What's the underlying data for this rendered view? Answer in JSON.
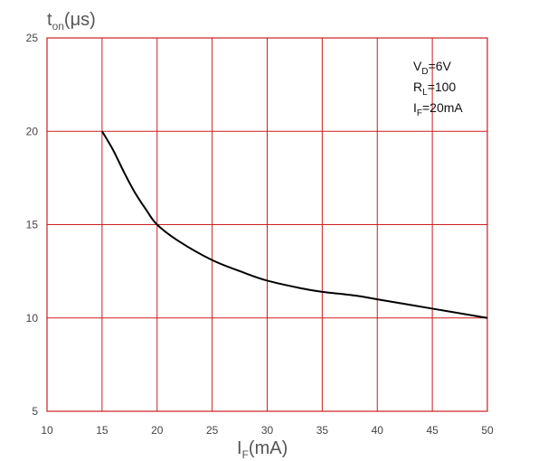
{
  "chart_data": {
    "type": "line",
    "xlabel": "I",
    "xlabel_sub": "F",
    "xlabel_unit": "(mA)",
    "ylabel": "t",
    "ylabel_sub": "on",
    "ylabel_unit": "(μs)",
    "xlim": [
      10,
      50
    ],
    "ylim": [
      5,
      25
    ],
    "x_ticks": [
      "10",
      "15",
      "20",
      "25",
      "30",
      "35",
      "40",
      "45",
      "50"
    ],
    "y_ticks": [
      "5",
      "10",
      "15",
      "20",
      "25"
    ],
    "grid": true,
    "series": [
      {
        "x": [
          15,
          16,
          17,
          18,
          19,
          20,
          22,
          25,
          28,
          30,
          33,
          35,
          38,
          40,
          45,
          50
        ],
        "y": [
          20,
          19.0,
          17.8,
          16.7,
          15.8,
          15.0,
          14.1,
          13.1,
          12.4,
          12.0,
          11.6,
          11.4,
          11.2,
          11.0,
          10.5,
          10.0
        ]
      }
    ],
    "annotations": [
      {
        "main": "V",
        "sub": "D",
        "rest": "=6V"
      },
      {
        "main": "R",
        "sub": "L",
        "rest": "=100"
      },
      {
        "main": "I",
        "sub": "F",
        "rest": "=20mA"
      }
    ],
    "colors": {
      "grid": "#cc1f1f",
      "line": "#000000",
      "text": "#444444"
    }
  }
}
